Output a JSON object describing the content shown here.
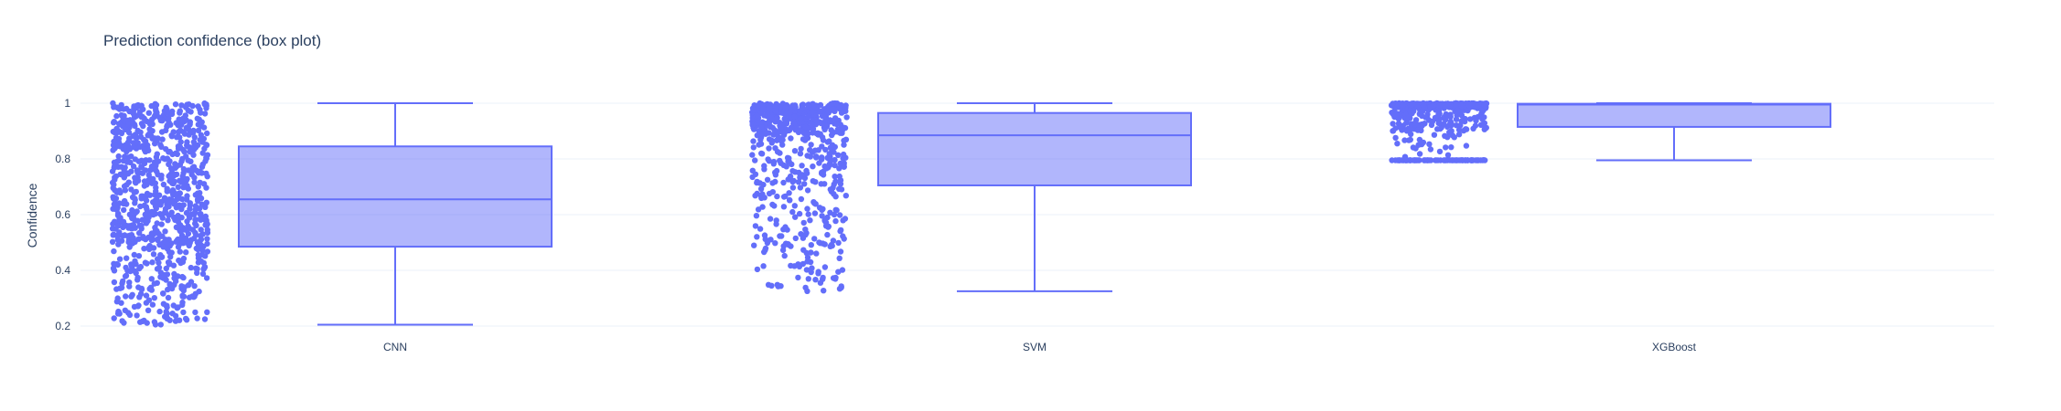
{
  "chart_data": {
    "type": "box",
    "title": "Prediction confidence (box plot)",
    "xlabel": "",
    "ylabel": "Confidence",
    "ylim": [
      0.2,
      1.0
    ],
    "yticks": [
      "0.2",
      "0.4",
      "0.6",
      "0.8",
      "1"
    ],
    "ytick_values": [
      0.2,
      0.4,
      0.6,
      0.8,
      1.0
    ],
    "grid": true,
    "jitter_points": true,
    "color": "#636efa",
    "categories": [
      "CNN",
      "SVM",
      "XGBoost"
    ],
    "boxes": [
      {
        "category": "CNN",
        "min": 0.205,
        "q1": 0.485,
        "median": 0.655,
        "q3": 0.845,
        "max": 1.0
      },
      {
        "category": "SVM",
        "min": 0.325,
        "q1": 0.705,
        "median": 0.885,
        "q3": 0.965,
        "max": 1.0
      },
      {
        "category": "XGBoost",
        "min": 0.795,
        "q1": 0.915,
        "median": 0.995,
        "q3": 0.998,
        "max": 1.0
      }
    ]
  }
}
